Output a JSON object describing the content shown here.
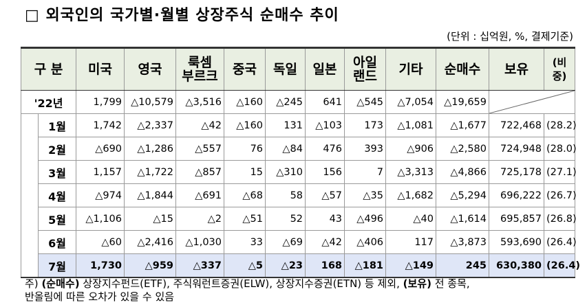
{
  "title": "□ 외국인의 국가별·월별 상장주식 순매수 추이",
  "unit": "(단위 : 십억원, %, 결제기준)",
  "table": {
    "header": [
      "구 분",
      "미국",
      "영국",
      "룩셈\n부르크",
      "중국",
      "독일",
      "일본",
      "아일\n랜드",
      "기타",
      "순매수",
      "보유",
      "(비중)"
    ],
    "year_row": {
      "label": "'22년",
      "values": [
        "1,799",
        "△10,579",
        "△3,516",
        "△160",
        "△245",
        "641",
        "△545",
        "△7,054",
        "△19,659"
      ]
    },
    "rows": [
      {
        "label": "1월",
        "values": [
          "1,742",
          "△2,337",
          "△42",
          "△160",
          "131",
          "△103",
          "173",
          "△1,081",
          "△1,677",
          "722,468",
          "(28.2)"
        ]
      },
      {
        "label": "2월",
        "values": [
          "△690",
          "△1,286",
          "△557",
          "76",
          "△84",
          "476",
          "393",
          "△906",
          "△2,580",
          "724,948",
          "(28.0)"
        ]
      },
      {
        "label": "3월",
        "values": [
          "1,157",
          "△1,722",
          "△857",
          "15",
          "△310",
          "156",
          "7",
          "△3,313",
          "△4,866",
          "725,178",
          "(27.1)"
        ]
      },
      {
        "label": "4월",
        "values": [
          "△974",
          "△1,844",
          "△691",
          "△68",
          "58",
          "△57",
          "△35",
          "△1,682",
          "△5,294",
          "696,222",
          "(26.7)"
        ]
      },
      {
        "label": "5월",
        "values": [
          "△1,106",
          "△15",
          "△2",
          "△51",
          "52",
          "43",
          "△496",
          "△40",
          "△1,614",
          "695,857",
          "(26.8)"
        ]
      },
      {
        "label": "6월",
        "values": [
          "△60",
          "△2,416",
          "△1,030",
          "33",
          "△69",
          "△42",
          "△406",
          "117",
          "△3,873",
          "593,690",
          "(26.4)"
        ]
      },
      {
        "label": "7월",
        "values": [
          "1,730",
          "△959",
          "△337",
          "△5",
          "△23",
          "168",
          "△181",
          "△149",
          "245",
          "630,380",
          "(26.4)"
        ]
      }
    ]
  },
  "footnote": {
    "label": "주)",
    "term1": "(순매수)",
    "text1": "상장지수펀드(ETF), 주식워런트증권(ELW), 상장지수증권(ETN) 등 제외,",
    "term2": "(보유)",
    "text2": "전 종목,",
    "line2": "반올림에 따른 오차가 있을 수 있음"
  }
}
